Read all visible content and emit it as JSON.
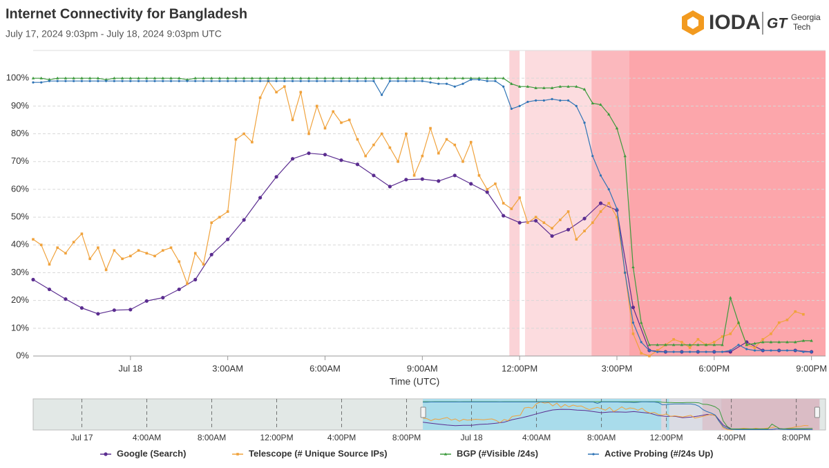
{
  "title": "Internet Connectivity for Bangladesh",
  "subtitle": "July 17, 2024 9:03pm - July 18, 2024 9:03pm UTC",
  "logo": {
    "name": "IODA",
    "mark": "GT",
    "partner": [
      "Georgia",
      "Tech"
    ]
  },
  "chart_data": {
    "type": "line",
    "x_label": "Time (UTC)",
    "xlim": [
      "2024-07-17T21:00Z",
      "2024-07-18T21:26Z"
    ],
    "xticks": [
      {
        "value": "2024-07-18T00:00Z",
        "label": "Jul 18"
      },
      {
        "value": "2024-07-18T03:00Z",
        "label": "3:00AM"
      },
      {
        "value": "2024-07-18T06:00Z",
        "label": "6:00AM"
      },
      {
        "value": "2024-07-18T09:00Z",
        "label": "9:00AM"
      },
      {
        "value": "2024-07-18T12:00Z",
        "label": "12:00PM"
      },
      {
        "value": "2024-07-18T15:00Z",
        "label": "3:00PM"
      },
      {
        "value": "2024-07-18T18:00Z",
        "label": "6:00PM"
      },
      {
        "value": "2024-07-18T21:00Z",
        "label": "9:00PM"
      }
    ],
    "ylim": [
      0,
      110
    ],
    "yticks": [
      {
        "value": 0,
        "label": "0%"
      },
      {
        "value": 10,
        "label": "10%"
      },
      {
        "value": 20,
        "label": "20%"
      },
      {
        "value": 30,
        "label": "30%"
      },
      {
        "value": 40,
        "label": "40%"
      },
      {
        "value": 50,
        "label": "50%"
      },
      {
        "value": 60,
        "label": "60%"
      },
      {
        "value": 70,
        "label": "70%"
      },
      {
        "value": 80,
        "label": "80%"
      },
      {
        "value": 90,
        "label": "90%"
      },
      {
        "value": 100,
        "label": "100%"
      }
    ],
    "grid": true,
    "legend": "bottom",
    "alert_bands": [
      {
        "start": "2024-07-18T11:41Z",
        "end": "2024-07-18T12:00Z",
        "color": "#fbd3d7"
      },
      {
        "start": "2024-07-18T12:10Z",
        "end": "2024-07-18T14:13Z",
        "color": "#fcdcdf"
      },
      {
        "start": "2024-07-18T14:13Z",
        "end": "2024-07-18T15:23Z",
        "color": "#fbb8bd"
      },
      {
        "start": "2024-07-18T15:23Z",
        "end": "2024-07-18T21:26Z",
        "color": "#fca6ab"
      }
    ],
    "x": [
      "2024-07-17T21:00Z",
      "2024-07-17T21:15Z",
      "2024-07-17T21:30Z",
      "2024-07-17T21:45Z",
      "2024-07-17T22:00Z",
      "2024-07-17T22:15Z",
      "2024-07-17T22:30Z",
      "2024-07-17T22:45Z",
      "2024-07-17T23:00Z",
      "2024-07-17T23:15Z",
      "2024-07-17T23:30Z",
      "2024-07-17T23:45Z",
      "2024-07-18T00:00Z",
      "2024-07-18T00:15Z",
      "2024-07-18T00:30Z",
      "2024-07-18T00:45Z",
      "2024-07-18T01:00Z",
      "2024-07-18T01:15Z",
      "2024-07-18T01:30Z",
      "2024-07-18T01:45Z",
      "2024-07-18T02:00Z",
      "2024-07-18T02:15Z",
      "2024-07-18T02:30Z",
      "2024-07-18T02:45Z",
      "2024-07-18T03:00Z",
      "2024-07-18T03:15Z",
      "2024-07-18T03:30Z",
      "2024-07-18T03:45Z",
      "2024-07-18T04:00Z",
      "2024-07-18T04:15Z",
      "2024-07-18T04:30Z",
      "2024-07-18T04:45Z",
      "2024-07-18T05:00Z",
      "2024-07-18T05:15Z",
      "2024-07-18T05:30Z",
      "2024-07-18T05:45Z",
      "2024-07-18T06:00Z",
      "2024-07-18T06:15Z",
      "2024-07-18T06:30Z",
      "2024-07-18T06:45Z",
      "2024-07-18T07:00Z",
      "2024-07-18T07:15Z",
      "2024-07-18T07:30Z",
      "2024-07-18T07:45Z",
      "2024-07-18T08:00Z",
      "2024-07-18T08:15Z",
      "2024-07-18T08:30Z",
      "2024-07-18T08:45Z",
      "2024-07-18T09:00Z",
      "2024-07-18T09:15Z",
      "2024-07-18T09:30Z",
      "2024-07-18T09:45Z",
      "2024-07-18T10:00Z",
      "2024-07-18T10:15Z",
      "2024-07-18T10:30Z",
      "2024-07-18T10:45Z",
      "2024-07-18T11:00Z",
      "2024-07-18T11:15Z",
      "2024-07-18T11:30Z",
      "2024-07-18T11:45Z",
      "2024-07-18T12:00Z",
      "2024-07-18T12:15Z",
      "2024-07-18T12:30Z",
      "2024-07-18T12:45Z",
      "2024-07-18T13:00Z",
      "2024-07-18T13:15Z",
      "2024-07-18T13:30Z",
      "2024-07-18T13:45Z",
      "2024-07-18T14:00Z",
      "2024-07-18T14:15Z",
      "2024-07-18T14:30Z",
      "2024-07-18T14:45Z",
      "2024-07-18T15:00Z",
      "2024-07-18T15:15Z",
      "2024-07-18T15:30Z",
      "2024-07-18T15:45Z",
      "2024-07-18T16:00Z",
      "2024-07-18T16:15Z",
      "2024-07-18T16:30Z",
      "2024-07-18T16:45Z",
      "2024-07-18T17:00Z",
      "2024-07-18T17:15Z",
      "2024-07-18T17:30Z",
      "2024-07-18T17:45Z",
      "2024-07-18T18:00Z",
      "2024-07-18T18:15Z",
      "2024-07-18T18:30Z",
      "2024-07-18T18:45Z",
      "2024-07-18T19:00Z",
      "2024-07-18T19:15Z",
      "2024-07-18T19:30Z",
      "2024-07-18T19:45Z",
      "2024-07-18T20:00Z",
      "2024-07-18T20:15Z",
      "2024-07-18T20:30Z",
      "2024-07-18T20:45Z",
      "2024-07-18T21:00Z"
    ],
    "series": [
      {
        "name": "Google (Search)",
        "color": "#5b2d90",
        "marker": "circle",
        "x": [
          "2024-07-17T21:00Z",
          "2024-07-17T21:30Z",
          "2024-07-17T22:00Z",
          "2024-07-17T22:30Z",
          "2024-07-17T23:00Z",
          "2024-07-17T23:30Z",
          "2024-07-18T00:00Z",
          "2024-07-18T00:30Z",
          "2024-07-18T01:00Z",
          "2024-07-18T01:30Z",
          "2024-07-18T02:00Z",
          "2024-07-18T02:30Z",
          "2024-07-18T03:00Z",
          "2024-07-18T03:30Z",
          "2024-07-18T04:00Z",
          "2024-07-18T04:30Z",
          "2024-07-18T05:00Z",
          "2024-07-18T05:30Z",
          "2024-07-18T06:00Z",
          "2024-07-18T06:30Z",
          "2024-07-18T07:00Z",
          "2024-07-18T07:30Z",
          "2024-07-18T08:00Z",
          "2024-07-18T08:30Z",
          "2024-07-18T09:00Z",
          "2024-07-18T09:30Z",
          "2024-07-18T10:00Z",
          "2024-07-18T10:30Z",
          "2024-07-18T11:00Z",
          "2024-07-18T11:30Z",
          "2024-07-18T12:00Z",
          "2024-07-18T12:30Z",
          "2024-07-18T13:00Z",
          "2024-07-18T13:30Z",
          "2024-07-18T14:00Z",
          "2024-07-18T14:30Z",
          "2024-07-18T15:00Z",
          "2024-07-18T15:30Z",
          "2024-07-18T16:00Z",
          "2024-07-18T16:30Z",
          "2024-07-18T17:00Z",
          "2024-07-18T17:30Z",
          "2024-07-18T18:00Z",
          "2024-07-18T18:30Z",
          "2024-07-18T19:00Z",
          "2024-07-18T19:30Z",
          "2024-07-18T20:00Z",
          "2024-07-18T20:30Z",
          "2024-07-18T21:00Z"
        ],
        "values": [
          27.5,
          24,
          20.5,
          17.3,
          15.2,
          16.5,
          16.7,
          19.8,
          21,
          24,
          27.5,
          36.5,
          42,
          49,
          57,
          64.5,
          71,
          73,
          72.5,
          70.5,
          69,
          65,
          61,
          63.5,
          63.7,
          63,
          65,
          62,
          59,
          50.5,
          48,
          48.7,
          43.2,
          45.5,
          49.5,
          55,
          52.5,
          17.5,
          2,
          1.5,
          1.5,
          1.5,
          1.5,
          1.5,
          5,
          2,
          2,
          2,
          1.5
        ]
      },
      {
        "name": "Telescope (# Unique Source IPs)",
        "color": "#f0a23c",
        "marker": "square",
        "values": [
          42,
          40,
          33,
          39,
          37,
          41,
          44,
          35,
          39,
          31,
          38,
          35,
          36,
          38,
          37,
          36,
          38,
          39,
          34,
          26,
          37,
          33,
          48,
          50,
          52,
          78,
          80,
          77,
          93,
          99,
          95,
          97,
          85,
          95,
          80,
          90,
          82,
          88,
          84,
          85,
          78,
          72,
          76,
          80,
          75,
          70,
          80,
          65,
          72,
          82,
          73,
          78,
          76,
          70,
          77,
          65,
          60,
          62,
          55,
          53,
          57,
          48,
          50,
          48,
          46,
          49,
          52,
          42,
          45,
          48,
          52,
          55,
          50,
          30,
          8,
          1,
          0,
          2,
          4,
          6,
          5,
          3,
          6,
          4,
          5,
          7,
          8,
          12,
          4,
          3,
          6,
          8,
          12,
          13,
          16,
          15,
          null
        ]
      },
      {
        "name": "BGP (#Visible /24s)",
        "color": "#3c9a3c",
        "marker": "triangle",
        "values": [
          100,
          100,
          99.5,
          100,
          100,
          100,
          100,
          100,
          100,
          99.5,
          100,
          100,
          100,
          100,
          100,
          100,
          100,
          100,
          100,
          99.5,
          100,
          100,
          100,
          100,
          100,
          100,
          100,
          100,
          100,
          100,
          100,
          100,
          100,
          100,
          100,
          100,
          100,
          100,
          100,
          100,
          100,
          100,
          100,
          100,
          100,
          100,
          100,
          100,
          100,
          100,
          100,
          100,
          100,
          100,
          100,
          100,
          100,
          100,
          100,
          98,
          97,
          97,
          96.5,
          96.5,
          96.5,
          97,
          97,
          97,
          96,
          91,
          90.5,
          87,
          82,
          72,
          32,
          12,
          4,
          4,
          4,
          4,
          4,
          4,
          4,
          4,
          4,
          4,
          21,
          12,
          4,
          4.5,
          5,
          5,
          5,
          5,
          5,
          5.5,
          5.5
        ]
      },
      {
        "name": "Active Probing (#/24s Up)",
        "color": "#2f74b5",
        "marker": "dot",
        "values": [
          98.5,
          98.5,
          99,
          99,
          99,
          99,
          99,
          99,
          99,
          99,
          99,
          99,
          99,
          99,
          99,
          99,
          99,
          99,
          99,
          99,
          99,
          99,
          99,
          99,
          99,
          99,
          99,
          99,
          99,
          99,
          99,
          99,
          99,
          99,
          99,
          99,
          99,
          99,
          99,
          99,
          99,
          99,
          99,
          94,
          99,
          99,
          99,
          99,
          99,
          98.5,
          98,
          98,
          97,
          98,
          99.5,
          99.5,
          99,
          99,
          97,
          89,
          90,
          91.5,
          92,
          92,
          92.5,
          92,
          92,
          90,
          84,
          72,
          65,
          60,
          53,
          30,
          12,
          5,
          2,
          1.5,
          1.5,
          1.5,
          1.5,
          1.5,
          1.5,
          1.5,
          1.5,
          1.5,
          2,
          4,
          2.5,
          2,
          2,
          2,
          2,
          2,
          2,
          1.5,
          1.5
        ]
      }
    ],
    "navigator": {
      "xlim": [
        "2024-07-16T21:00Z",
        "2024-07-18T21:48Z"
      ],
      "xticks": [
        {
          "value": "2024-07-17T00:00Z",
          "label": "Jul 17"
        },
        {
          "value": "2024-07-17T04:00Z",
          "label": "4:00AM"
        },
        {
          "value": "2024-07-17T08:00Z",
          "label": "8:00AM"
        },
        {
          "value": "2024-07-17T12:00Z",
          "label": "12:00PM"
        },
        {
          "value": "2024-07-17T16:00Z",
          "label": "4:00PM"
        },
        {
          "value": "2024-07-17T20:00Z",
          "label": "8:00PM"
        },
        {
          "value": "2024-07-18T00:00Z",
          "label": "Jul 18"
        },
        {
          "value": "2024-07-18T04:00Z",
          "label": "4:00AM"
        },
        {
          "value": "2024-07-18T08:00Z",
          "label": "8:00AM"
        },
        {
          "value": "2024-07-18T12:00Z",
          "label": "12:00PM"
        },
        {
          "value": "2024-07-18T16:00Z",
          "label": "4:00PM"
        },
        {
          "value": "2024-07-18T20:00Z",
          "label": "8:00PM"
        }
      ]
    }
  }
}
